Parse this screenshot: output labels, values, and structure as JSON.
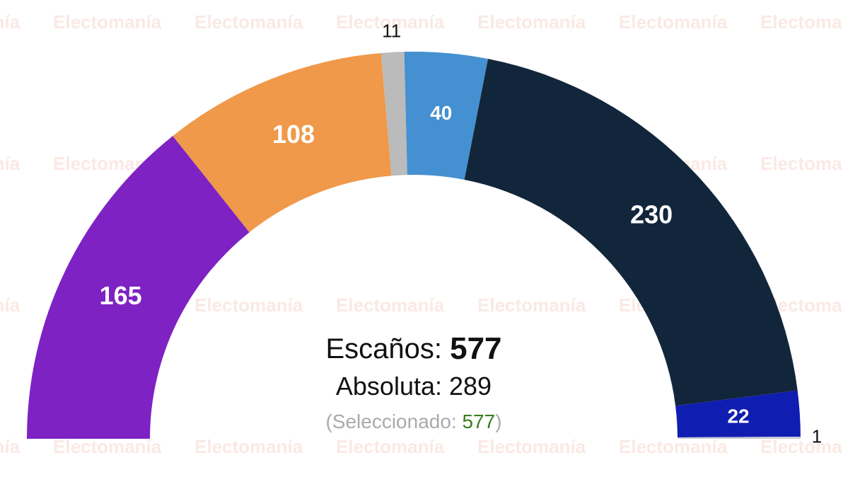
{
  "chart_data": {
    "type": "semicircle",
    "watermark": "Electomanía",
    "series": [
      {
        "color": "#7e22c4",
        "values": [
          165
        ]
      },
      {
        "color": "#f0994a",
        "values": [
          108
        ]
      },
      {
        "color": "#bbbbbb",
        "values": [
          11
        ]
      },
      {
        "color": "#4590d0",
        "values": [
          40
        ]
      },
      {
        "color": "#12263b",
        "values": [
          230
        ]
      },
      {
        "color": "#0f1db0",
        "values": [
          22
        ]
      },
      {
        "color": "#c8c8d8",
        "values": [
          1
        ]
      }
    ],
    "seats_label": "Escaños:",
    "total": 577,
    "majority_label": "Absoluta:",
    "majority": 289,
    "selected_label": "(Seleccionado:",
    "selected": 577,
    "selected_close": ")"
  }
}
